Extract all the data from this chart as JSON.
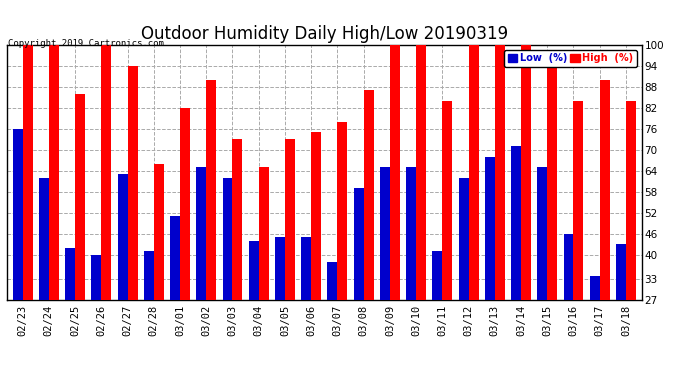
{
  "title": "Outdoor Humidity Daily High/Low 20190319",
  "copyright": "Copyright 2019 Cartronics.com",
  "dates": [
    "02/23",
    "02/24",
    "02/25",
    "02/26",
    "02/27",
    "02/28",
    "03/01",
    "03/02",
    "03/03",
    "03/04",
    "03/05",
    "03/06",
    "03/07",
    "03/08",
    "03/09",
    "03/10",
    "03/11",
    "03/12",
    "03/13",
    "03/14",
    "03/15",
    "03/16",
    "03/17",
    "03/18"
  ],
  "high": [
    100,
    100,
    86,
    100,
    94,
    66,
    82,
    90,
    73,
    65,
    73,
    75,
    78,
    87,
    100,
    100,
    84,
    100,
    100,
    100,
    94,
    84,
    90,
    84
  ],
  "low": [
    76,
    62,
    42,
    40,
    63,
    41,
    51,
    65,
    62,
    44,
    45,
    45,
    38,
    59,
    65,
    65,
    41,
    62,
    68,
    71,
    65,
    46,
    34,
    43
  ],
  "high_color": "#ff0000",
  "low_color": "#0000cc",
  "bg_color": "#ffffff",
  "plot_bg_color": "#ffffff",
  "grid_color": "#aaaaaa",
  "ylim_min": 27,
  "ylim_max": 100,
  "yticks": [
    27,
    33,
    40,
    46,
    52,
    58,
    64,
    70,
    76,
    82,
    88,
    94,
    100
  ],
  "bar_bottom": 27,
  "bar_width": 0.38,
  "title_fontsize": 12,
  "tick_fontsize": 7.5,
  "legend_low_label": "Low  (%)",
  "legend_high_label": "High  (%)"
}
